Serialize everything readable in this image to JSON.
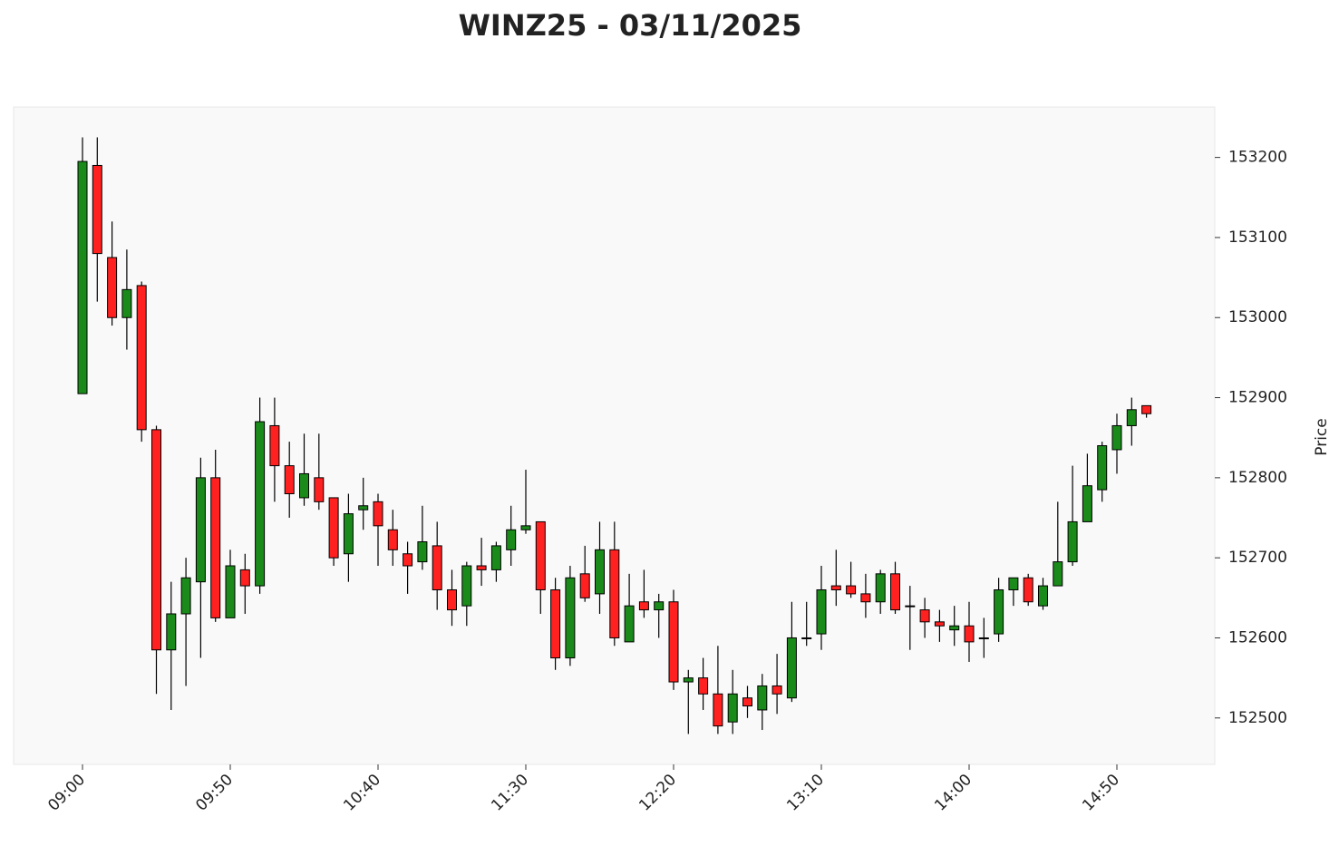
{
  "chart_data": {
    "type": "candlestick",
    "title": "WINZ25 - 03/11/2025",
    "y_label": "Price",
    "categories": [
      "09:00",
      null,
      null,
      null,
      null,
      null,
      null,
      null,
      null,
      null,
      "09:50",
      null,
      null,
      null,
      null,
      null,
      null,
      null,
      null,
      null,
      "10:40",
      null,
      null,
      null,
      null,
      null,
      null,
      null,
      null,
      null,
      "11:30",
      null,
      null,
      null,
      null,
      null,
      null,
      null,
      null,
      null,
      "12:20",
      null,
      null,
      null,
      null,
      null,
      null,
      null,
      null,
      null,
      "13:10",
      null,
      null,
      null,
      null,
      null,
      null,
      null,
      null,
      null,
      "14:00",
      null,
      null,
      null,
      null,
      null,
      null,
      null,
      null,
      null,
      "14:50",
      null,
      null
    ],
    "up_color": "#1a8a1a",
    "down_color": "#ff2020",
    "series": [
      {
        "open": [
          152905,
          153190,
          153075,
          153000,
          153040,
          152860,
          152585,
          152630,
          152670,
          152800,
          152625,
          152685,
          152665,
          152865,
          152815,
          152775,
          152800,
          152775,
          152705,
          152760,
          152770,
          152735,
          152705,
          152695,
          152715,
          152660,
          152640,
          152690,
          152685,
          152710,
          152735,
          152745,
          152660,
          152575,
          152680,
          152655,
          152710,
          152595,
          152645,
          152635,
          152645,
          152545,
          152550,
          152530,
          152495,
          152525,
          152510,
          152540,
          152525,
          152600,
          152605,
          152665,
          152665,
          152655,
          152645,
          152680,
          152640,
          152635,
          152620,
          152610,
          152615,
          152600,
          152605,
          152660,
          152675,
          152640,
          152665,
          152695,
          152745,
          152785,
          152835,
          152865,
          152890
        ],
        "high": [
          153225,
          153225,
          153120,
          153085,
          153045,
          152865,
          152670,
          152700,
          152825,
          152835,
          152710,
          152705,
          152900,
          152900,
          152845,
          152855,
          152855,
          152775,
          152780,
          152800,
          152780,
          152760,
          152720,
          152765,
          152745,
          152685,
          152695,
          152725,
          152720,
          152765,
          152810,
          152745,
          152675,
          152690,
          152715,
          152745,
          152745,
          152680,
          152685,
          152655,
          152660,
          152560,
          152575,
          152590,
          152560,
          152540,
          152555,
          152580,
          152645,
          152645,
          152690,
          152710,
          152695,
          152680,
          152685,
          152695,
          152665,
          152650,
          152635,
          152640,
          152645,
          152625,
          152675,
          152675,
          152680,
          152675,
          152770,
          152815,
          152830,
          152845,
          152880,
          152900,
          152890
        ],
        "low": [
          152905,
          153020,
          152990,
          152960,
          152845,
          152530,
          152510,
          152540,
          152575,
          152620,
          152625,
          152630,
          152655,
          152770,
          152750,
          152765,
          152760,
          152690,
          152670,
          152735,
          152690,
          152690,
          152655,
          152685,
          152635,
          152615,
          152615,
          152665,
          152670,
          152690,
          152730,
          152630,
          152560,
          152565,
          152645,
          152630,
          152590,
          152595,
          152625,
          152600,
          152535,
          152480,
          152510,
          152480,
          152480,
          152500,
          152485,
          152505,
          152520,
          152590,
          152585,
          152640,
          152650,
          152625,
          152630,
          152630,
          152585,
          152600,
          152595,
          152590,
          152570,
          152575,
          152595,
          152640,
          152640,
          152635,
          152665,
          152690,
          152745,
          152770,
          152805,
          152840,
          152875
        ],
        "close": [
          153195,
          153080,
          153000,
          153035,
          152860,
          152585,
          152630,
          152675,
          152800,
          152625,
          152690,
          152665,
          152870,
          152815,
          152780,
          152805,
          152770,
          152700,
          152755,
          152765,
          152740,
          152710,
          152690,
          152720,
          152660,
          152635,
          152690,
          152685,
          152715,
          152735,
          152740,
          152660,
          152575,
          152675,
          152650,
          152710,
          152600,
          152640,
          152635,
          152645,
          152545,
          152550,
          152530,
          152490,
          152530,
          152515,
          152540,
          152530,
          152600,
          152600,
          152660,
          152660,
          152655,
          152645,
          152680,
          152635,
          152640,
          152620,
          152615,
          152615,
          152595,
          152600,
          152660,
          152675,
          152645,
          152665,
          152695,
          152745,
          152790,
          152840,
          152865,
          152885,
          152880
        ]
      }
    ],
    "ylim": [
      152442,
      153263
    ],
    "yticks": [
      152500,
      152600,
      152700,
      152800,
      152900,
      153000,
      153100,
      153200
    ]
  }
}
